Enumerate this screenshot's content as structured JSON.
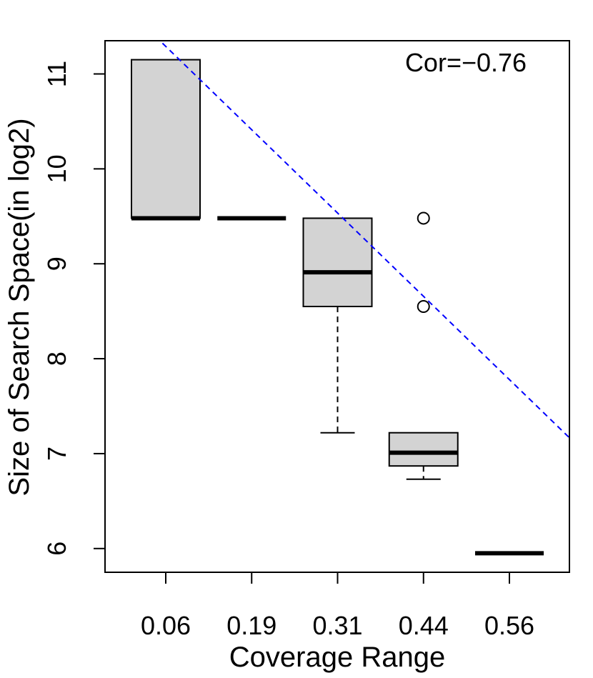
{
  "chart_data": {
    "type": "boxplot",
    "title": "",
    "xlabel": "Coverage Range",
    "ylabel": "Size of Search Space(in log2)",
    "annotation": "Cor=−0.76",
    "ylim": [
      5.75,
      11.35
    ],
    "y_ticks": [
      6,
      7,
      8,
      9,
      10,
      11
    ],
    "categories": [
      "0.06",
      "0.19",
      "0.31",
      "0.44",
      "0.56"
    ],
    "boxes": [
      {
        "category": "0.06",
        "whisker_low": 9.48,
        "q1": 9.48,
        "median": 9.48,
        "q3": 11.15,
        "whisker_high": 11.15,
        "outliers": []
      },
      {
        "category": "0.19",
        "whisker_low": 9.48,
        "q1": 9.48,
        "median": 9.48,
        "q3": 9.48,
        "whisker_high": 9.48,
        "outliers": []
      },
      {
        "category": "0.31",
        "whisker_low": 7.22,
        "q1": 8.55,
        "median": 8.91,
        "q3": 9.48,
        "whisker_high": 9.48,
        "outliers": []
      },
      {
        "category": "0.44",
        "whisker_low": 6.73,
        "q1": 6.87,
        "median": 7.01,
        "q3": 7.22,
        "whisker_high": 7.22,
        "outliers": [
          8.55,
          9.48
        ]
      },
      {
        "category": "0.56",
        "whisker_low": 5.95,
        "q1": 5.95,
        "median": 5.95,
        "q3": 5.95,
        "whisker_high": 5.95,
        "outliers": []
      }
    ],
    "trend_line": {
      "style": "dashed",
      "color": "#0000ff",
      "intercept": 11.29,
      "slope": -0.8775
    },
    "colors": {
      "box_fill": "#d3d3d3",
      "stroke": "#000000",
      "trend": "#0000ff"
    },
    "grid": false,
    "legend": "none"
  }
}
